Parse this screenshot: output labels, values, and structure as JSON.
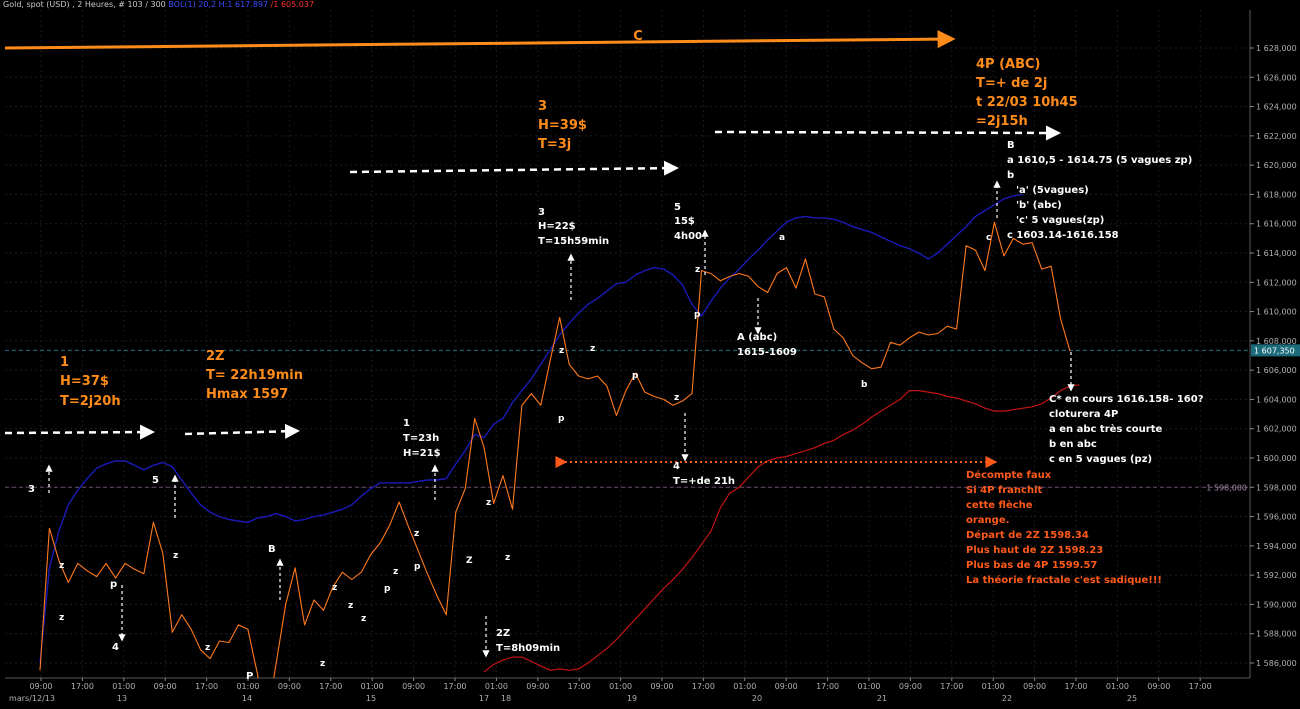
{
  "header": {
    "instrument": "Gold, spot (USD) , 2 Heures, # 103 / 300",
    "bollinger": "BOL(1) 20,2",
    "band_up_prefix": "H:1 617.897",
    "band_low_prefix": "/1 605.037"
  },
  "colors": {
    "background": "#000000",
    "price": "#ff7a1c",
    "bollinger_upper": "#1a1ab8",
    "bollinger_lower": "#c41414",
    "c_arrow": "#ff8c1a",
    "annotation_orange": "#ff8c1a",
    "annotation_white": "#ffffff",
    "annotation_red_orange": "#ff5a1a",
    "current_price_tag": "#1b6b7a",
    "level_tag": "#3d2a55"
  },
  "chart_data": {
    "type": "line",
    "title": "",
    "xlabel": "",
    "ylabel": "",
    "ylim": [
      1585,
      1629
    ],
    "y_ticks": [
      "1 586,000",
      "1 588,000",
      "1 590,000",
      "1 592,000",
      "1 594,000",
      "1 596,000",
      "1 598,000",
      "1 600,000",
      "1 602,000",
      "1 604,000",
      "1 606,000",
      "1 608,000",
      "1 610,000",
      "1 612,000",
      "1 614,000",
      "1 616,000",
      "1 618,000",
      "1 620,000",
      "1 622,000",
      "1 624,000",
      "1 626,000",
      "1 628,000"
    ],
    "x_time_ticks": [
      "09:00",
      "17:00",
      "01:00",
      "09:00",
      "17:00",
      "01:00",
      "09:00",
      "17:00",
      "01:00",
      "09:00",
      "17:00",
      "01:00",
      "09:00",
      "17:00",
      "01:00",
      "09:00",
      "17:00",
      "01:00",
      "09:00",
      "17:00",
      "01:00",
      "09:00",
      "17:00",
      "01:00",
      "09:00",
      "17:00",
      "01:00",
      "09:00",
      "17:00"
    ],
    "x_date_ticks": [
      "mars/12/13",
      "13",
      "14",
      "15",
      "17",
      "18",
      "19",
      "20",
      "21",
      "22",
      "25"
    ],
    "current_price_label": "1 607,350",
    "current_price": 1607.35,
    "level_label": "1 598,000",
    "level": 1598.0,
    "series": [
      {
        "kind": "price",
        "values": [
          1585.5,
          1595.2,
          1593,
          1591.5,
          1592.8,
          1592.3,
          1591.9,
          1592.8,
          1591.8,
          1592.8,
          1592.4,
          1592.1,
          1595.6,
          1593.5,
          1588.1,
          1589.3,
          1588.3,
          1586.9,
          1586.3,
          1587.5,
          1587.4,
          1588.6,
          1588.3,
          1585.3,
          1582,
          1586,
          1590,
          1592.5,
          1588.6,
          1590.3,
          1589.6,
          1591.2,
          1592.2,
          1591.7,
          1592.2,
          1593.4,
          1594.2,
          1595.4,
          1597,
          1595.3,
          1593.7,
          1592.1,
          1590.6,
          1589.3,
          1596.3,
          1597.9,
          1602.7,
          1600.7,
          1596.9,
          1598.8,
          1596.5,
          1603.6,
          1604.4,
          1603.6,
          1606.7,
          1609.6,
          1606.4,
          1605.6,
          1605.4,
          1605.6,
          1604.9,
          1602.9,
          1604.6,
          1605.8,
          1604.5,
          1604.2,
          1604,
          1603.6,
          1603.9,
          1604.4,
          1612.8,
          1612.6,
          1612.1,
          1612.4,
          1612.6,
          1612.4,
          1611.7,
          1611.3,
          1612.6,
          1613,
          1611.6,
          1613.6,
          1611.2,
          1611,
          1608.8,
          1608.2,
          1607,
          1606.5,
          1606.1,
          1606.2,
          1607.9,
          1607.7,
          1608.2,
          1608.6,
          1608.4,
          1608.5,
          1609,
          1608.8,
          1614.5,
          1614.2,
          1612.8,
          1616.1,
          1613.8,
          1615,
          1614.6,
          1614.7,
          1612.9,
          1613.1,
          1609.5,
          1607.3
        ]
      },
      {
        "kind": "bollinger_upper",
        "values": [
          1586,
          1592.5,
          1595,
          1596.8,
          1597.8,
          1598.6,
          1599.3,
          1599.6,
          1599.8,
          1599.8,
          1599.5,
          1599.2,
          1599.5,
          1599.7,
          1599.4,
          1598.5,
          1597.6,
          1596.8,
          1596.3,
          1596,
          1595.8,
          1595.7,
          1595.6,
          1595.9,
          1596,
          1596.2,
          1596,
          1595.7,
          1595.8,
          1596,
          1596.1,
          1596.3,
          1596.5,
          1596.8,
          1597.4,
          1597.9,
          1598.3,
          1598.3,
          1598.3,
          1598.3,
          1598.4,
          1598.5,
          1598.5,
          1598.6,
          1599.6,
          1600.5,
          1601.6,
          1601.4,
          1602.3,
          1602.7,
          1603.8,
          1604.6,
          1605.4,
          1606.4,
          1607.4,
          1608.4,
          1609.2,
          1609.9,
          1610.5,
          1610.9,
          1611.4,
          1611.9,
          1612,
          1612.5,
          1612.8,
          1613,
          1612.9,
          1612.5,
          1611.8,
          1610.5,
          1609.7,
          1610.7,
          1611.6,
          1612.3,
          1612.9,
          1613.6,
          1614.2,
          1614.9,
          1615.5,
          1616.1,
          1616.4,
          1616.5,
          1616.4,
          1616.4,
          1616.3,
          1616.1,
          1615.8,
          1615.6,
          1615.4,
          1615.1,
          1614.8,
          1614.5,
          1614.3,
          1614,
          1613.6,
          1614,
          1614.6,
          1615.2,
          1615.8,
          1616.5,
          1616.9,
          1617.3,
          1617.7,
          1617.9,
          1618
        ],
        "start_index": 0
      },
      {
        "kind": "bollinger_lower",
        "values": [
          1585.4,
          1585.9,
          1586.2,
          1586.4,
          1586.4,
          1586.1,
          1585.8,
          1585.5,
          1585.6,
          1585.5,
          1585.6,
          1586,
          1586.5,
          1587,
          1587.6,
          1588.3,
          1589,
          1589.7,
          1590.4,
          1591.1,
          1591.7,
          1592.4,
          1593.2,
          1594.1,
          1595,
          1596.6,
          1597.6,
          1598,
          1598.7,
          1599.4,
          1599.8,
          1600,
          1600.1,
          1600.3,
          1600.5,
          1600.7,
          1601,
          1601.2,
          1601.6,
          1601.9,
          1602.3,
          1602.8,
          1603.2,
          1603.6,
          1604,
          1604.6,
          1604.6,
          1604.5,
          1604.4,
          1604.2,
          1604.1,
          1603.9,
          1603.7,
          1603.4,
          1603.2,
          1603.2,
          1603.3,
          1603.4,
          1603.5,
          1603.7,
          1604.1,
          1604.6,
          1604.9,
          1605
        ],
        "start_index": 47
      }
    ]
  },
  "annotations": {
    "c_label": "C",
    "w1_num": "1",
    "w1_h": "H=37$",
    "w1_t": "T=2j20h",
    "w2z_title": "2Z",
    "w2z_t": "T= 22h19min",
    "w2z_hmax": "Hmax 1597",
    "w3_num": "3",
    "w3_h": "H=39$",
    "w3_t": "T=3j",
    "w4p_title": "4P (ABC)",
    "w4p_t1": "T=+ de 2j",
    "w4p_t2": "t 22/03 10h45",
    "w4p_t3": "=2j15h",
    "sw3_left": "3",
    "sw5_left": "5",
    "sw4_left": "4",
    "b_left": "B",
    "p_left": "p",
    "p_left2": "P",
    "sub1_num": "1",
    "sub1_t": "T=23h",
    "sub1_h": "H=21$",
    "sub2z_title": "2Z",
    "sub2z_t": "T=8h09min",
    "sub3_num": "3",
    "sub3_h": "H=22$",
    "sub3_t": "T=15h59min",
    "sub5_num": "5",
    "sub5_h": "15$",
    "sub5_t": "4h00",
    "sub4_num": "4",
    "sub4_t": "T=+de 21h",
    "a_abc_1": "A (abc)",
    "a_abc_2": "1615-1609",
    "b_block_B": "B",
    "b_block_a": "a 1610,5 - 1614.75 (5 vagues zp)",
    "b_block_b": "b",
    "b_block_a2": "'a' (5vagues)",
    "b_block_b2": "'b' (abc)",
    "b_block_c2": "'c' 5 vagues(zp)",
    "b_block_c": "c 1603.14-1616.158",
    "cstar_1": "C* en cours 1616.158- 160?",
    "cstar_2": "cloturera 4P",
    "cstar_3": "a en abc très courte",
    "cstar_4": "b en abc",
    "cstar_5": "c en 5 vagues (pz)",
    "decompte_1": "Décompte faux",
    "decompte_2": "Si 4P franchit",
    "decompte_3": "cette flèche",
    "decompte_4": "orange.",
    "decompte_5": "Départ de 2Z 1598.34",
    "decompte_6": "Plus haut de 2Z 1598.23",
    "decompte_7": "Plus bas de 4P  1599.57",
    "decompte_8": "La théorie fractale c'est sadique!!!",
    "lbl_z": "z",
    "lbl_Z": "Z",
    "lbl_p": "p",
    "lbl_a": "a",
    "lbl_b": "b",
    "lbl_c": "c"
  }
}
